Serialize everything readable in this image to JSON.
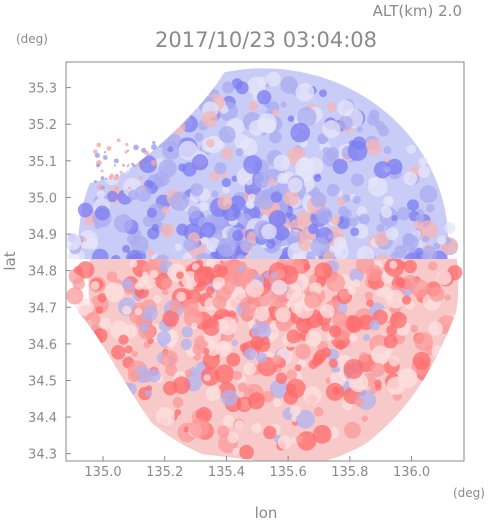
{
  "header": {
    "altitude": "ALT(km) 2.0",
    "timestamp": "2017/10/23 03:04:08"
  },
  "axes": {
    "y_unit": "(deg)",
    "x_unit": "(deg)",
    "ylabel": "lat",
    "xlabel": "lon"
  },
  "colors": {
    "positive": "#ff6666",
    "negative": "#7777ff",
    "axis": "#8a8a8a"
  },
  "chart_data": {
    "type": "heatmap",
    "subtype": "doppler-radar-ppi",
    "title": "2017/10/23 03:04:08",
    "xlabel": "lon",
    "ylabel": "lat",
    "xlim": [
      134.88,
      136.17
    ],
    "ylim": [
      34.28,
      35.37
    ],
    "grid": false,
    "x_ticks": [
      {
        "value": 135.0,
        "label": "135.0"
      },
      {
        "value": 135.2,
        "label": "135.2"
      },
      {
        "value": 135.4,
        "label": "135.4"
      },
      {
        "value": 135.6,
        "label": "135.6"
      },
      {
        "value": 135.8,
        "label": "135.8"
      },
      {
        "value": 136.0,
        "label": "136.0"
      }
    ],
    "y_ticks": [
      {
        "value": 34.3,
        "label": "34.3"
      },
      {
        "value": 34.4,
        "label": "34.4"
      },
      {
        "value": 34.5,
        "label": "34.5"
      },
      {
        "value": 34.6,
        "label": "34.6"
      },
      {
        "value": 34.7,
        "label": "34.7"
      },
      {
        "value": 34.8,
        "label": "34.8"
      },
      {
        "value": 34.9,
        "label": "34.9"
      },
      {
        "value": 35.0,
        "label": "35.0"
      },
      {
        "value": 35.1,
        "label": "35.1"
      },
      {
        "value": 35.2,
        "label": "35.2"
      },
      {
        "value": 35.3,
        "label": "35.3"
      }
    ],
    "radar_center": {
      "lon": 135.52,
      "lat": 34.82
    },
    "pattern": "radial velocity: receding (red) south of radar, approaching (blue) north of radar"
  }
}
